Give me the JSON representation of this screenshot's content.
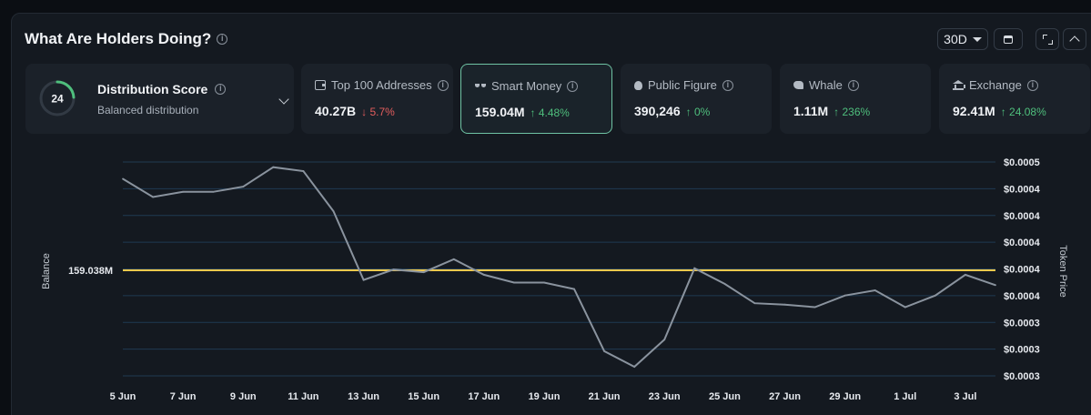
{
  "header": {
    "title": "What Are Holders Doing?",
    "range_label": "30D"
  },
  "distribution": {
    "score": "24",
    "title": "Distribution Score",
    "subtitle": "Balanced distribution",
    "ring_fraction": 0.24,
    "ring_color": "#4fbf7d"
  },
  "categories": [
    {
      "label": "Top 100 Addresses",
      "value": "40.27B",
      "change": "5.7%",
      "direction": "down",
      "icon": "wallet-icon"
    },
    {
      "label": "Smart Money",
      "value": "159.04M",
      "change": "4.48%",
      "direction": "up",
      "icon": "glasses-icon",
      "selected": true
    },
    {
      "label": "Public Figure",
      "value": "390,246",
      "change": "0%",
      "direction": "up",
      "icon": "lightbulb-icon"
    },
    {
      "label": "Whale",
      "value": "1.11M",
      "change": "236%",
      "direction": "up",
      "icon": "whale-icon"
    },
    {
      "label": "Exchange",
      "value": "92.41M",
      "change": "24.08%",
      "direction": "up",
      "icon": "bank-icon"
    }
  ],
  "colors": {
    "line": "#8a939e",
    "reference_line": "#f2c94c",
    "grid": "#1f3a52",
    "up": "#4fbf7d",
    "down": "#e35d5d"
  },
  "chart_data": {
    "type": "line",
    "left_axis_label": "Balance",
    "right_axis_label": "Token Price",
    "reference": {
      "label": "159.038M",
      "value": 159.038
    },
    "right_ticks": [
      "$0.0005",
      "$0.0004",
      "$0.0004",
      "$0.0004",
      "$0.0004",
      "$0.0004",
      "$0.0003",
      "$0.0003",
      "$0.0003"
    ],
    "x_ticks": [
      "5 Jun",
      "7 Jun",
      "9 Jun",
      "11 Jun",
      "13 Jun",
      "15 Jun",
      "17 Jun",
      "19 Jun",
      "21 Jun",
      "23 Jun",
      "25 Jun",
      "27 Jun",
      "29 Jun",
      "1 Jul",
      "3 Jul"
    ],
    "x": [
      "5 Jun",
      "6 Jun",
      "7 Jun",
      "8 Jun",
      "9 Jun",
      "10 Jun",
      "11 Jun",
      "12 Jun",
      "13 Jun",
      "14 Jun",
      "15 Jun",
      "16 Jun",
      "17 Jun",
      "18 Jun",
      "19 Jun",
      "20 Jun",
      "21 Jun",
      "22 Jun",
      "23 Jun",
      "24 Jun",
      "25 Jun",
      "26 Jun",
      "27 Jun",
      "28 Jun",
      "29 Jun",
      "30 Jun",
      "1 Jul",
      "2 Jul",
      "3 Jul",
      "4 Jul"
    ],
    "series": [
      {
        "values": [
          0.000442,
          0.000428,
          0.000432,
          0.000432,
          0.000436,
          0.000451,
          0.000448,
          0.000417,
          0.000364,
          0.000372,
          0.00037,
          0.00038,
          0.000368,
          0.000362,
          0.000362,
          0.000357,
          0.000309,
          0.000297,
          0.000318,
          0.000373,
          0.000361,
          0.000346,
          0.000345,
          0.000343,
          0.000352,
          0.000356,
          0.000343,
          0.000352,
          0.000368,
          0.00036
        ]
      }
    ],
    "y_range": [
      0.00029,
      0.000455
    ],
    "grid": true
  }
}
